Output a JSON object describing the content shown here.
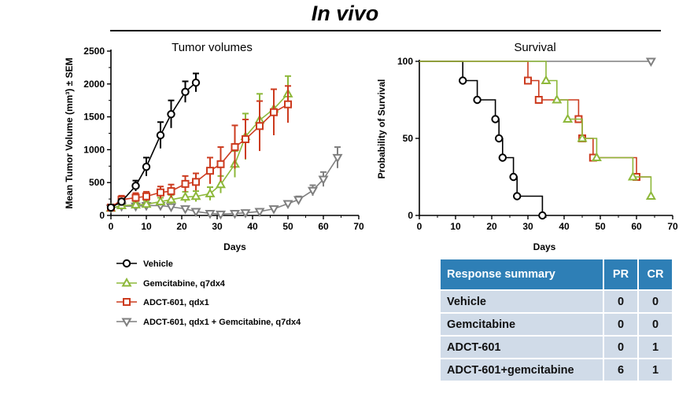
{
  "page_title": "In vivo",
  "chart_data": [
    {
      "type": "line",
      "title": "Tumor volumes",
      "xlabel": "Days",
      "ylabel": "Mean Tumor Volume (mm³) ± SEM",
      "xlim": [
        0,
        70
      ],
      "ylim": [
        0,
        2500
      ],
      "xticks": [
        0,
        10,
        20,
        30,
        40,
        50,
        60,
        70
      ],
      "yticks": [
        0,
        500,
        1000,
        1500,
        2000,
        2500
      ],
      "series": [
        {
          "name": "Vehicle",
          "color": "#000000",
          "marker": "circle",
          "x": [
            0,
            3,
            7,
            10,
            14,
            17,
            21,
            24
          ],
          "y": [
            120,
            210,
            450,
            740,
            1220,
            1540,
            1880,
            2020
          ],
          "err": [
            40,
            40,
            80,
            140,
            200,
            210,
            160,
            140
          ]
        },
        {
          "name": "Gemcitabine, q7dx4",
          "color": "#8db83a",
          "marker": "triangle-up",
          "x": [
            0,
            3,
            7,
            10,
            14,
            17,
            21,
            24,
            28,
            31,
            35,
            38,
            42,
            46,
            50
          ],
          "y": [
            110,
            150,
            160,
            170,
            210,
            240,
            280,
            290,
            330,
            470,
            780,
            1200,
            1450,
            1620,
            1850
          ],
          "err": [
            30,
            40,
            40,
            50,
            60,
            70,
            80,
            80,
            100,
            130,
            200,
            350,
            400,
            300,
            270
          ]
        },
        {
          "name": "ADCT-601, qdx1",
          "color": "#cc3b1f",
          "marker": "square",
          "x": [
            0,
            3,
            7,
            10,
            14,
            17,
            21,
            24,
            28,
            31,
            35,
            38,
            42,
            46,
            50
          ],
          "y": [
            120,
            240,
            270,
            290,
            350,
            370,
            480,
            510,
            680,
            780,
            1040,
            1160,
            1360,
            1570,
            1690
          ],
          "err": [
            40,
            60,
            70,
            70,
            90,
            100,
            120,
            130,
            200,
            260,
            330,
            300,
            380,
            350,
            280
          ]
        },
        {
          "name": "ADCT-601, qdx1 + Gemcitabine, q7dx4",
          "color": "#7f7f7f",
          "marker": "triangle-down",
          "x": [
            0,
            3,
            7,
            10,
            14,
            17,
            21,
            24,
            28,
            31,
            35,
            38,
            42,
            46,
            50,
            53,
            57,
            60,
            64
          ],
          "y": [
            110,
            140,
            140,
            150,
            150,
            130,
            100,
            60,
            30,
            20,
            30,
            40,
            60,
            100,
            180,
            240,
            380,
            550,
            880
          ],
          "err": [
            20,
            20,
            20,
            20,
            20,
            20,
            20,
            20,
            10,
            10,
            10,
            10,
            20,
            30,
            40,
            50,
            80,
            110,
            160
          ]
        }
      ]
    },
    {
      "type": "line",
      "subtype": "kaplan-meier",
      "title": "Survival",
      "xlabel": "Days",
      "ylabel": "Probability of Survival",
      "xlim": [
        0,
        70
      ],
      "ylim": [
        0,
        100
      ],
      "xticks": [
        0,
        10,
        20,
        30,
        40,
        50,
        60,
        70
      ],
      "yticks": [
        0,
        50,
        100
      ],
      "series": [
        {
          "name": "Vehicle",
          "color": "#000000",
          "marker": "circle",
          "steps": [
            [
              0,
              100
            ],
            [
              12,
              87.5
            ],
            [
              16,
              75
            ],
            [
              21,
              62.5
            ],
            [
              22,
              50
            ],
            [
              23,
              37.5
            ],
            [
              26,
              25
            ],
            [
              27,
              12.5
            ],
            [
              34,
              0
            ]
          ],
          "end": 34
        },
        {
          "name": "Gemcitabine, q7dx4",
          "color": "#8db83a",
          "marker": "triangle-up",
          "steps": [
            [
              0,
              100
            ],
            [
              35,
              87.5
            ],
            [
              38,
              75
            ],
            [
              41,
              62.5
            ],
            [
              45,
              50
            ],
            [
              49,
              37.5
            ],
            [
              59,
              25
            ],
            [
              64,
              12.5
            ]
          ],
          "end": 64
        },
        {
          "name": "ADCT-601, qdx1",
          "color": "#cc3b1f",
          "marker": "square",
          "steps": [
            [
              0,
              100
            ],
            [
              30,
              87.5
            ],
            [
              33,
              75
            ],
            [
              44,
              62.5
            ],
            [
              45,
              50
            ],
            [
              48,
              37.5
            ],
            [
              60,
              25
            ]
          ],
          "end": 64
        },
        {
          "name": "ADCT-601, qdx1 + Gemcitabine, q7dx4",
          "color": "#7f7f7f",
          "marker": "triangle-down",
          "steps": [
            [
              0,
              100
            ]
          ],
          "end": 64
        }
      ]
    }
  ],
  "legend": [
    {
      "label": "Vehicle",
      "color": "#000000",
      "marker": "circle"
    },
    {
      "label": "Gemcitabine, q7dx4",
      "color": "#8db83a",
      "marker": "triangle-up"
    },
    {
      "label": "ADCT-601, qdx1",
      "color": "#cc3b1f",
      "marker": "square"
    },
    {
      "label": "ADCT-601, qdx1 + Gemcitabine, q7dx4",
      "color": "#7f7f7f",
      "marker": "triangle-down"
    }
  ],
  "response_table": {
    "headers": [
      "Response summary",
      "PR",
      "CR"
    ],
    "rows": [
      [
        "Vehicle",
        "0",
        "0"
      ],
      [
        "Gemcitabine",
        "0",
        "0"
      ],
      [
        "ADCT-601",
        "0",
        "1"
      ],
      [
        "ADCT-601+gemcitabine",
        "6",
        "1"
      ]
    ]
  }
}
